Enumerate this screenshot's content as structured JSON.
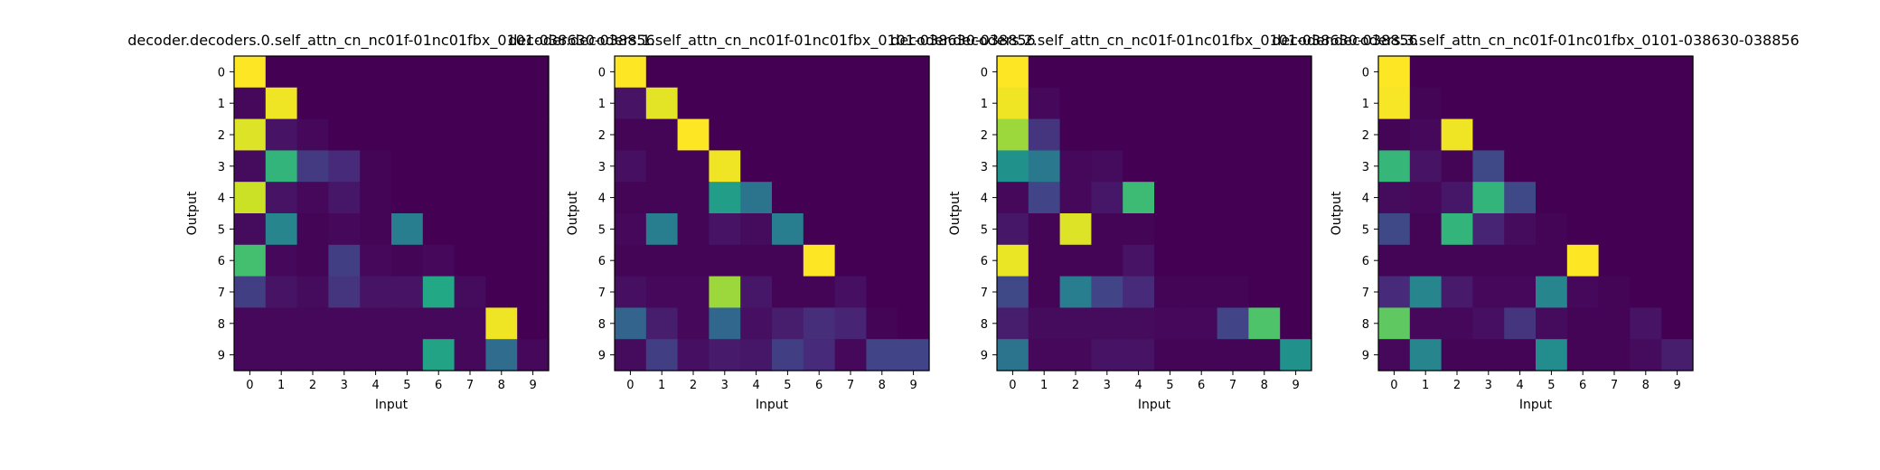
{
  "chart_data": [
    {
      "type": "heatmap",
      "title": "decoder.decoders.0.self_attn_cn_nc01f-01nc01fbx_0101-038630-038856",
      "xlabel": "Input",
      "ylabel": "Output",
      "x_ticks": [
        "0",
        "1",
        "2",
        "3",
        "4",
        "5",
        "6",
        "7",
        "8",
        "9"
      ],
      "y_ticks": [
        "0",
        "1",
        "2",
        "3",
        "4",
        "5",
        "6",
        "7",
        "8",
        "9"
      ],
      "colormap": "viridis",
      "vmin": 0,
      "vmax": 1,
      "values": [
        [
          1.0,
          0,
          0,
          0,
          0,
          0,
          0,
          0,
          0,
          0
        ],
        [
          0.02,
          0.98,
          0,
          0,
          0,
          0,
          0,
          0,
          0,
          0
        ],
        [
          0.95,
          0.05,
          0.02,
          0,
          0,
          0,
          0,
          0,
          0,
          0
        ],
        [
          0.03,
          0.65,
          0.17,
          0.12,
          0.01,
          0,
          0,
          0,
          0,
          0
        ],
        [
          0.92,
          0.05,
          0.02,
          0.06,
          0.01,
          0,
          0,
          0,
          0,
          0
        ],
        [
          0.03,
          0.45,
          0.01,
          0.02,
          0.01,
          0.42,
          0,
          0,
          0,
          0
        ],
        [
          0.7,
          0.02,
          0.01,
          0.18,
          0.02,
          0.01,
          0.02,
          0,
          0,
          0
        ],
        [
          0.18,
          0.05,
          0.03,
          0.15,
          0.05,
          0.05,
          0.6,
          0.03,
          0,
          0
        ],
        [
          0.02,
          0.02,
          0.02,
          0.02,
          0.02,
          0.02,
          0.02,
          0.02,
          0.98,
          0
        ],
        [
          0.02,
          0.02,
          0.02,
          0.02,
          0.02,
          0.02,
          0.58,
          0.02,
          0.35,
          0.02
        ]
      ]
    },
    {
      "type": "heatmap",
      "title": "decoder.decoders.1.self_attn_cn_nc01f-01nc01fbx_0101-038630-038856",
      "xlabel": "Input",
      "ylabel": "Output",
      "x_ticks": [
        "0",
        "1",
        "2",
        "3",
        "4",
        "5",
        "6",
        "7",
        "8",
        "9"
      ],
      "y_ticks": [
        "0",
        "1",
        "2",
        "3",
        "4",
        "5",
        "6",
        "7",
        "8",
        "9"
      ],
      "colormap": "viridis",
      "vmin": 0,
      "vmax": 1,
      "values": [
        [
          1.0,
          0,
          0,
          0,
          0,
          0,
          0,
          0,
          0,
          0
        ],
        [
          0.05,
          0.96,
          0,
          0,
          0,
          0,
          0,
          0,
          0,
          0
        ],
        [
          0.01,
          0.01,
          1.0,
          0,
          0,
          0,
          0,
          0,
          0,
          0
        ],
        [
          0.04,
          0.01,
          0.01,
          0.98,
          0,
          0,
          0,
          0,
          0,
          0
        ],
        [
          0.01,
          0.01,
          0.01,
          0.55,
          0.38,
          0,
          0,
          0,
          0,
          0
        ],
        [
          0.02,
          0.42,
          0.01,
          0.05,
          0.03,
          0.42,
          0,
          0,
          0,
          0
        ],
        [
          0.01,
          0.01,
          0.01,
          0.01,
          0.01,
          0.01,
          1.0,
          0,
          0,
          0
        ],
        [
          0.04,
          0.02,
          0.02,
          0.85,
          0.06,
          0.01,
          0.01,
          0.04,
          0,
          0
        ],
        [
          0.32,
          0.08,
          0.02,
          0.33,
          0.04,
          0.08,
          0.13,
          0.1,
          0.01,
          0
        ],
        [
          0.03,
          0.18,
          0.04,
          0.07,
          0.06,
          0.18,
          0.12,
          0.02,
          0.2,
          0.2
        ]
      ]
    },
    {
      "type": "heatmap",
      "title": "decoder.decoders.2.self_attn_cn_nc01f-01nc01fbx_0101-038630-038856",
      "xlabel": "Input",
      "ylabel": "Output",
      "x_ticks": [
        "0",
        "1",
        "2",
        "3",
        "4",
        "5",
        "6",
        "7",
        "8",
        "9"
      ],
      "y_ticks": [
        "0",
        "1",
        "2",
        "3",
        "4",
        "5",
        "6",
        "7",
        "8",
        "9"
      ],
      "colormap": "viridis",
      "vmin": 0,
      "vmax": 1,
      "values": [
        [
          1.0,
          0,
          0,
          0,
          0,
          0,
          0,
          0,
          0,
          0
        ],
        [
          0.98,
          0.02,
          0,
          0,
          0,
          0,
          0,
          0,
          0,
          0
        ],
        [
          0.85,
          0.15,
          0,
          0,
          0,
          0,
          0,
          0,
          0,
          0
        ],
        [
          0.5,
          0.4,
          0.02,
          0.03,
          0,
          0,
          0,
          0,
          0,
          0
        ],
        [
          0.02,
          0.2,
          0.02,
          0.06,
          0.68,
          0,
          0,
          0,
          0,
          0
        ],
        [
          0.06,
          0.01,
          0.95,
          0.01,
          0.01,
          0,
          0,
          0,
          0,
          0
        ],
        [
          0.97,
          0.01,
          0.01,
          0.01,
          0.05,
          0,
          0,
          0,
          0,
          0
        ],
        [
          0.22,
          0.01,
          0.42,
          0.2,
          0.12,
          0.01,
          0.01,
          0.01,
          0,
          0
        ],
        [
          0.08,
          0.03,
          0.03,
          0.03,
          0.03,
          0.02,
          0.02,
          0.2,
          0.72,
          0
        ],
        [
          0.38,
          0.02,
          0.02,
          0.05,
          0.05,
          0.01,
          0.01,
          0.01,
          0.01,
          0.5
        ]
      ]
    },
    {
      "type": "heatmap",
      "title": "decoder.decoders.3.self_attn_cn_nc01f-01nc01fbx_0101-038630-038856",
      "xlabel": "Input",
      "ylabel": "Output",
      "x_ticks": [
        "0",
        "1",
        "2",
        "3",
        "4",
        "5",
        "6",
        "7",
        "8",
        "9"
      ],
      "y_ticks": [
        "0",
        "1",
        "2",
        "3",
        "4",
        "5",
        "6",
        "7",
        "8",
        "9"
      ],
      "colormap": "viridis",
      "vmin": 0,
      "vmax": 1,
      "values": [
        [
          1.0,
          0,
          0,
          0,
          0,
          0,
          0,
          0,
          0,
          0
        ],
        [
          0.99,
          0.01,
          0,
          0,
          0,
          0,
          0,
          0,
          0,
          0
        ],
        [
          0.01,
          0.02,
          0.98,
          0,
          0,
          0,
          0,
          0,
          0,
          0
        ],
        [
          0.66,
          0.05,
          0.01,
          0.22,
          0,
          0,
          0,
          0,
          0,
          0
        ],
        [
          0.03,
          0.02,
          0.06,
          0.65,
          0.22,
          0,
          0,
          0,
          0,
          0
        ],
        [
          0.22,
          0.01,
          0.65,
          0.1,
          0.03,
          0.01,
          0,
          0,
          0,
          0
        ],
        [
          0.01,
          0.01,
          0.01,
          0.01,
          0.01,
          0.01,
          1.0,
          0,
          0,
          0
        ],
        [
          0.12,
          0.45,
          0.07,
          0.02,
          0.02,
          0.45,
          0.02,
          0.01,
          0,
          0
        ],
        [
          0.75,
          0.02,
          0.02,
          0.04,
          0.15,
          0.03,
          0.01,
          0.01,
          0.05,
          0
        ],
        [
          0.02,
          0.45,
          0.01,
          0.01,
          0.01,
          0.48,
          0.01,
          0.01,
          0.03,
          0.08
        ]
      ]
    }
  ]
}
